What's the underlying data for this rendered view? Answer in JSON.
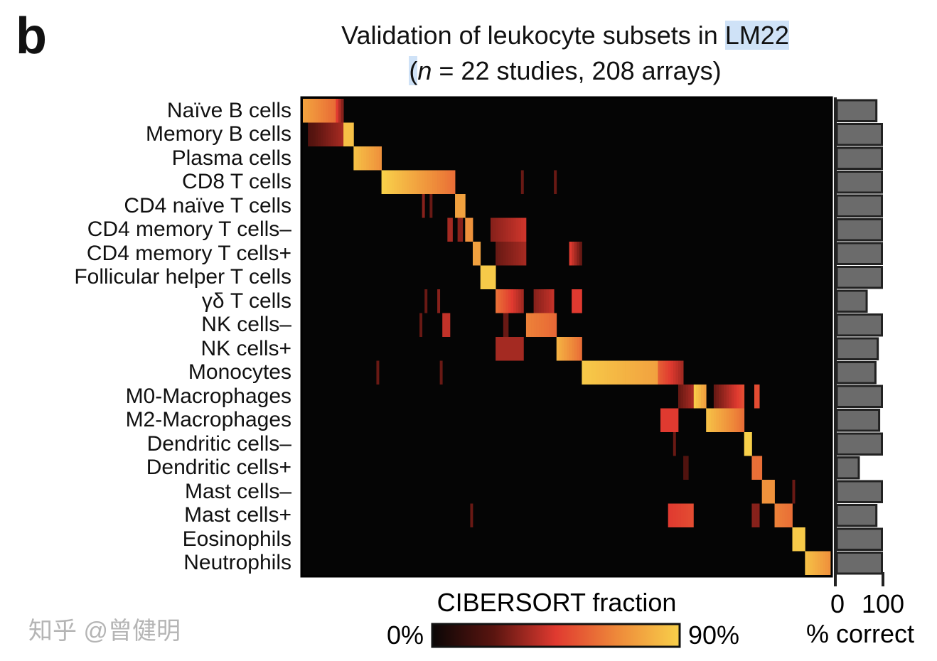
{
  "panel_letter": "b",
  "chart_data": [
    {
      "type": "heatmap",
      "title_line1": "Validation of leukocyte subsets in ",
      "title_highlight": "LM22",
      "title_line2_open": "(",
      "title_line2_n": "n",
      "title_line2_rest": " = 22 studies, 208 arrays)",
      "rows": [
        "Naïve B cells",
        "Memory B cells",
        "Plasma cells",
        "CD8 T cells",
        "CD4 naïve T cells",
        "CD4 memory T cells–",
        "CD4 memory T cells+",
        "Follicular helper T cells",
        "γδ T cells",
        "NK cells–",
        "NK cells+",
        "Monocytes",
        "M0-Macrophages",
        "M2-Macrophages",
        "Dendritic cells–",
        "Dendritic cells+",
        "Mast cells–",
        "Mast cells+",
        "Eosinophils",
        "Neutrophils"
      ],
      "n_arrays": 208,
      "segments_note_fields": [
        "row",
        "array_start",
        "array_end",
        "fraction_start",
        "fraction_end"
      ],
      "segments": [
        [
          0,
          0,
          16,
          0.75,
          0.55
        ],
        [
          0,
          13,
          16,
          0.45,
          0.3
        ],
        [
          1,
          2,
          16,
          0.2,
          0.35
        ],
        [
          1,
          16,
          20,
          0.85,
          0.85
        ],
        [
          2,
          20,
          31,
          0.85,
          0.7
        ],
        [
          3,
          31,
          60,
          0.9,
          0.6
        ],
        [
          3,
          86,
          87,
          0.25,
          0.25
        ],
        [
          3,
          99,
          100,
          0.25,
          0.25
        ],
        [
          4,
          60,
          64,
          0.75,
          0.75
        ],
        [
          4,
          47,
          48,
          0.3,
          0.3
        ],
        [
          4,
          50,
          51,
          0.25,
          0.25
        ],
        [
          5,
          64,
          67,
          0.7,
          0.7
        ],
        [
          5,
          57,
          59,
          0.35,
          0.35
        ],
        [
          5,
          61,
          63,
          0.3,
          0.3
        ],
        [
          5,
          74,
          88,
          0.3,
          0.42
        ],
        [
          6,
          67,
          70,
          0.75,
          0.75
        ],
        [
          6,
          76,
          88,
          0.25,
          0.35
        ],
        [
          6,
          105,
          110,
          0.45,
          0.25
        ],
        [
          7,
          70,
          76,
          0.88,
          0.88
        ],
        [
          8,
          76,
          87,
          0.6,
          0.35
        ],
        [
          8,
          91,
          99,
          0.3,
          0.4
        ],
        [
          8,
          106,
          110,
          0.45,
          0.45
        ],
        [
          8,
          48,
          49,
          0.25,
          0.25
        ],
        [
          8,
          53,
          54,
          0.3,
          0.3
        ],
        [
          9,
          88,
          100,
          0.65,
          0.58
        ],
        [
          9,
          55,
          58,
          0.4,
          0.4
        ],
        [
          9,
          46,
          47,
          0.25,
          0.25
        ],
        [
          9,
          79,
          81,
          0.25,
          0.25
        ],
        [
          10,
          100,
          110,
          0.8,
          0.6
        ],
        [
          10,
          76,
          87,
          0.35,
          0.35
        ],
        [
          11,
          110,
          140,
          0.88,
          0.75
        ],
        [
          11,
          140,
          150,
          0.55,
          0.35
        ],
        [
          11,
          29,
          30,
          0.25,
          0.25
        ],
        [
          11,
          54,
          55,
          0.25,
          0.25
        ],
        [
          12,
          154,
          159,
          0.88,
          0.75
        ],
        [
          12,
          148,
          154,
          0.25,
          0.35
        ],
        [
          12,
          162,
          174,
          0.25,
          0.5
        ],
        [
          12,
          178,
          180,
          0.5,
          0.5
        ],
        [
          13,
          159,
          174,
          0.85,
          0.6
        ],
        [
          13,
          141,
          148,
          0.45,
          0.45
        ],
        [
          14,
          174,
          177,
          0.9,
          0.9
        ],
        [
          14,
          146,
          147,
          0.25,
          0.25
        ],
        [
          15,
          177,
          181,
          0.6,
          0.6
        ],
        [
          15,
          150,
          152,
          0.2,
          0.2
        ],
        [
          16,
          181,
          186,
          0.7,
          0.7
        ],
        [
          16,
          193,
          194,
          0.25,
          0.25
        ],
        [
          17,
          186,
          193,
          0.65,
          0.6
        ],
        [
          17,
          144,
          154,
          0.45,
          0.5
        ],
        [
          17,
          177,
          180,
          0.3,
          0.3
        ],
        [
          17,
          66,
          67,
          0.25,
          0.25
        ],
        [
          18,
          193,
          198,
          0.88,
          0.88
        ],
        [
          19,
          198,
          208,
          0.85,
          0.7
        ]
      ],
      "colorbar": {
        "label": "CIBERSORT fraction",
        "min_label": "0%",
        "max_label": "90%",
        "range": [
          0,
          0.9
        ],
        "colors": [
          "#0a0606",
          "#5a1510",
          "#e03a30",
          "#ee8a3a",
          "#f8d04a"
        ]
      }
    },
    {
      "type": "bar",
      "orientation": "horizontal",
      "categories": [
        "Naïve B cells",
        "Memory B cells",
        "Plasma cells",
        "CD8 T cells",
        "CD4 naïve T cells",
        "CD4 memory T cells–",
        "CD4 memory T cells+",
        "Follicular helper T cells",
        "γδ T cells",
        "NK cells–",
        "NK cells+",
        "Monocytes",
        "M0-Macrophages",
        "M2-Macrophages",
        "Dendritic cells–",
        "Dendritic cells+",
        "Mast cells–",
        "Mast cells+",
        "Eosinophils",
        "Neutrophils"
      ],
      "values": [
        88,
        100,
        100,
        100,
        100,
        100,
        100,
        100,
        67,
        100,
        91,
        86,
        100,
        94,
        100,
        50,
        100,
        88,
        100,
        100
      ],
      "xlim": [
        0,
        100
      ],
      "tick_labels": [
        "0",
        "100"
      ],
      "xlabel": "% correct",
      "bar_color": "#6b6b6b"
    }
  ],
  "watermark": "知乎 @曾健明"
}
